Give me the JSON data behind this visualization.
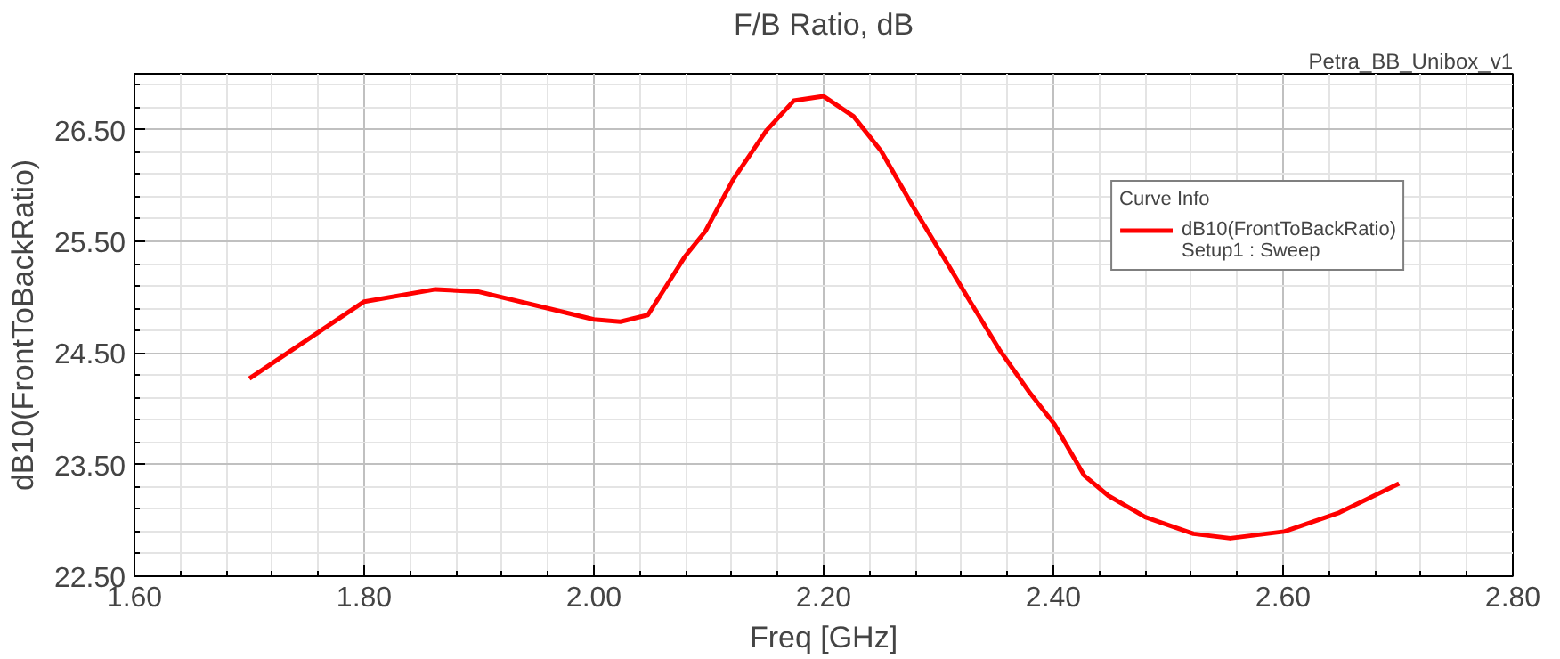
{
  "chart_data": {
    "type": "line",
    "title": "F/B Ratio, dB",
    "xlabel": "Freq [GHz]",
    "ylabel": "dB10(FrontToBackRatio)",
    "legend_title": "Curve Info",
    "annotations": [
      "Petra_BB_Unibox_v1",
      "Setup1 : Sweep"
    ],
    "xlim": [
      1.6,
      2.8
    ],
    "xticks": [
      {
        "value": 1.6,
        "label": "1.60"
      },
      {
        "value": 1.8,
        "label": "1.80"
      },
      {
        "value": 2.0,
        "label": "2.00"
      },
      {
        "value": 2.2,
        "label": "2.20"
      },
      {
        "value": 2.4,
        "label": "2.40"
      },
      {
        "value": 2.6,
        "label": "2.60"
      },
      {
        "value": 2.8,
        "label": "2.80"
      }
    ],
    "ylim": [
      22.5,
      27.0
    ],
    "yticks": [
      {
        "value": 22.5,
        "label": "22.50"
      },
      {
        "value": 23.5,
        "label": "23.50"
      },
      {
        "value": 24.5,
        "label": "24.50"
      },
      {
        "value": 25.5,
        "label": "25.50"
      },
      {
        "value": 26.5,
        "label": "26.50"
      }
    ],
    "grid": true,
    "legend": "top right",
    "marker": "none",
    "line_style": "solid",
    "series": [
      {
        "name": "dB10(FrontToBackRatio)",
        "color": "#ff0000",
        "x": [
          1.7,
          1.8,
          1.862,
          1.899,
          1.952,
          2.0,
          2.023,
          2.047,
          2.079,
          2.097,
          2.121,
          2.15,
          2.174,
          2.2,
          2.226,
          2.25,
          2.279,
          2.306,
          2.327,
          2.353,
          2.379,
          2.401,
          2.427,
          2.448,
          2.48,
          2.522,
          2.554,
          2.601,
          2.649,
          2.701
        ],
        "values": [
          24.27,
          24.96,
          25.07,
          25.05,
          24.92,
          24.8,
          24.78,
          24.84,
          25.36,
          25.59,
          26.05,
          26.49,
          26.76,
          26.8,
          26.62,
          26.31,
          25.79,
          25.33,
          24.97,
          24.53,
          24.15,
          23.86,
          23.4,
          23.22,
          23.03,
          22.88,
          22.84,
          22.9,
          23.07,
          23.33
        ]
      }
    ]
  }
}
